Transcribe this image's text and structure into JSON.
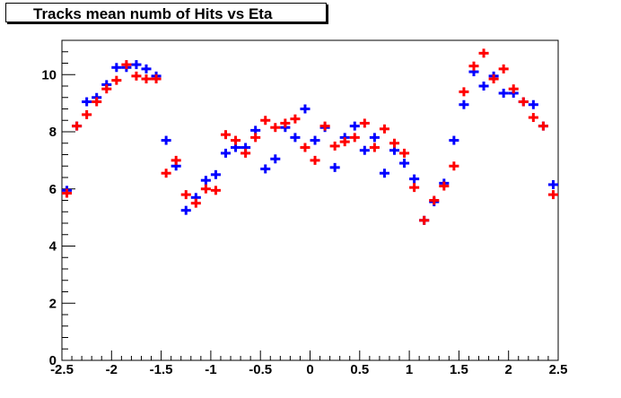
{
  "chart_data": {
    "type": "scatter",
    "title": "Tracks mean numb of  Hits vs Eta",
    "xlabel": "",
    "ylabel": "",
    "xlim": [
      -2.5,
      2.5
    ],
    "ylim": [
      0,
      11.2
    ],
    "xticks": [
      -2.5,
      -2,
      -1.5,
      -1,
      -0.5,
      0,
      0.5,
      1,
      1.5,
      2,
      2.5
    ],
    "xtick_labels": [
      "-2.5",
      "-2",
      "-1.5",
      "-1",
      "-0.5",
      "0",
      "0.5",
      "1",
      "1.5",
      "2",
      "2.5"
    ],
    "yticks": [
      0,
      2,
      4,
      6,
      8,
      10
    ],
    "ytick_labels": [
      "0",
      "2",
      "4",
      "6",
      "8",
      "10"
    ],
    "grid": false,
    "legend": "none",
    "series": [
      {
        "color": "#0000ff",
        "x": [
          -2.45,
          -2.35,
          -2.25,
          -2.15,
          -2.05,
          -1.95,
          -1.85,
          -1.75,
          -1.65,
          -1.55,
          -1.45,
          -1.35,
          -1.25,
          -1.15,
          -1.05,
          -0.95,
          -0.85,
          -0.75,
          -0.65,
          -0.55,
          -0.45,
          -0.35,
          -0.25,
          -0.15,
          -0.05,
          0.05,
          0.15,
          0.25,
          0.35,
          0.45,
          0.55,
          0.65,
          0.75,
          0.85,
          0.95,
          1.05,
          1.15,
          1.25,
          1.35,
          1.45,
          1.55,
          1.65,
          1.75,
          1.85,
          1.95,
          2.05,
          2.15,
          2.25,
          2.35,
          2.45
        ],
        "y": [
          5.95,
          8.2,
          9.05,
          9.2,
          9.65,
          10.25,
          10.25,
          10.35,
          10.2,
          9.95,
          7.7,
          6.8,
          5.25,
          5.7,
          6.3,
          6.5,
          7.25,
          7.45,
          7.45,
          8.05,
          6.7,
          7.05,
          8.15,
          7.8,
          8.8,
          7.7,
          8.15,
          6.75,
          7.8,
          8.2,
          7.35,
          7.8,
          6.55,
          7.35,
          6.9,
          6.35,
          4.9,
          5.55,
          6.2,
          7.7,
          8.95,
          10.1,
          9.6,
          9.95,
          9.35,
          9.35,
          9.05,
          8.95,
          8.2,
          6.15
        ]
      },
      {
        "color": "#ff0000",
        "x": [
          -2.45,
          -2.35,
          -2.25,
          -2.15,
          -2.05,
          -1.95,
          -1.85,
          -1.75,
          -1.65,
          -1.55,
          -1.45,
          -1.35,
          -1.25,
          -1.15,
          -1.05,
          -0.95,
          -0.85,
          -0.75,
          -0.65,
          -0.55,
          -0.45,
          -0.35,
          -0.25,
          -0.15,
          -0.05,
          0.05,
          0.15,
          0.25,
          0.35,
          0.45,
          0.55,
          0.65,
          0.75,
          0.85,
          0.95,
          1.05,
          1.15,
          1.25,
          1.35,
          1.45,
          1.55,
          1.65,
          1.75,
          1.85,
          1.95,
          2.05,
          2.15,
          2.25,
          2.35,
          2.45
        ],
        "y": [
          5.85,
          8.2,
          8.6,
          9.05,
          9.5,
          9.8,
          10.35,
          9.95,
          9.85,
          9.85,
          6.55,
          7.0,
          5.8,
          5.5,
          6.0,
          5.95,
          7.9,
          7.7,
          7.25,
          7.8,
          8.4,
          8.15,
          8.3,
          8.45,
          7.45,
          7.0,
          8.2,
          7.5,
          7.65,
          7.8,
          8.3,
          7.45,
          8.1,
          7.6,
          7.25,
          6.05,
          4.9,
          5.6,
          6.1,
          6.8,
          9.4,
          10.3,
          10.75,
          9.85,
          10.2,
          9.5,
          9.05,
          8.5,
          8.2,
          5.8
        ]
      }
    ]
  }
}
